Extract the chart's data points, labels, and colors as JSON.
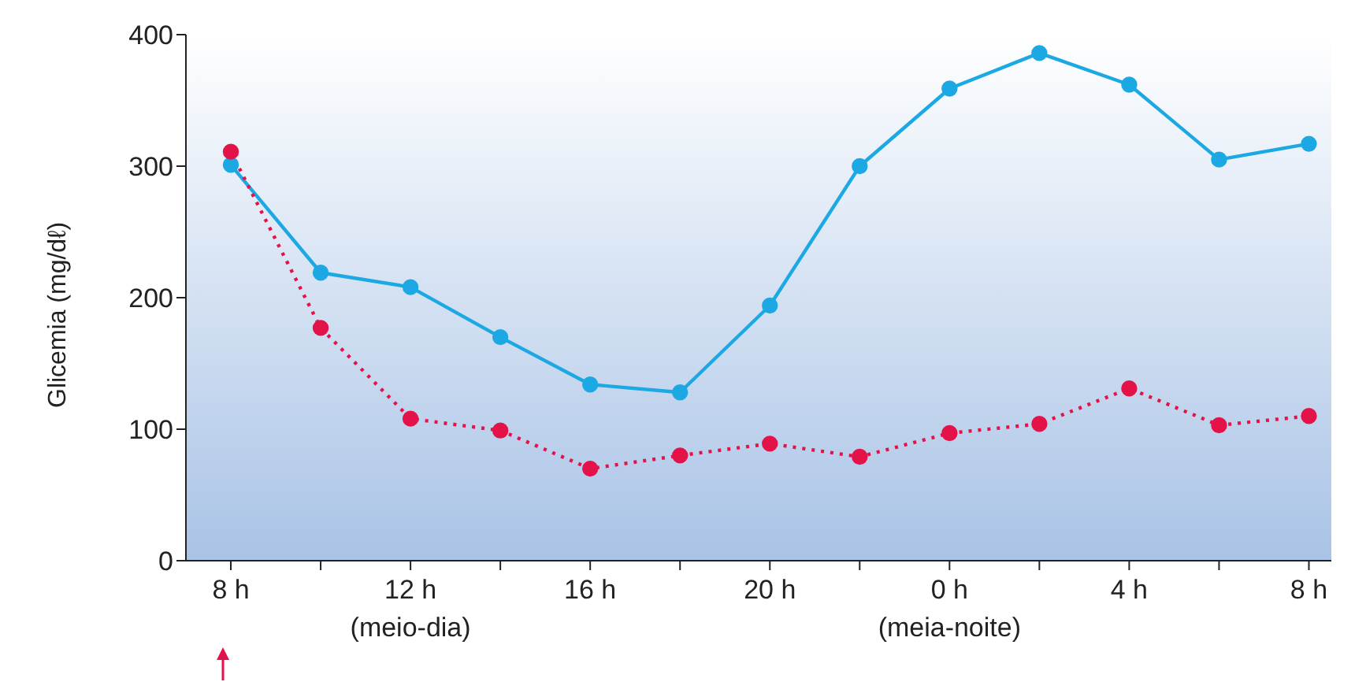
{
  "chart_data": {
    "type": "line",
    "ylabel": "Glicemia (mg/dℓ)",
    "categories": [
      "8 h",
      null,
      "12 h\n(meio-dia)",
      null,
      "16 h",
      null,
      "20 h",
      null,
      "0 h\n(meia-noite)",
      null,
      "4 h",
      null,
      "8 h"
    ],
    "series": [
      {
        "color": "#1ba8e3",
        "line_style": "solid",
        "values": [
          301,
          219,
          208,
          170,
          134,
          128,
          194,
          300,
          359,
          386,
          362,
          305,
          317
        ]
      },
      {
        "color": "#e3134a",
        "line_style": "dotted",
        "values": [
          311,
          177,
          108,
          99,
          70,
          80,
          89,
          79,
          97,
          104,
          131,
          103,
          110
        ]
      }
    ],
    "ylim": [
      0,
      400
    ],
    "yticks": [
      0,
      100,
      200,
      300,
      400
    ],
    "marker": "circle",
    "grid": false,
    "legend": false
  }
}
